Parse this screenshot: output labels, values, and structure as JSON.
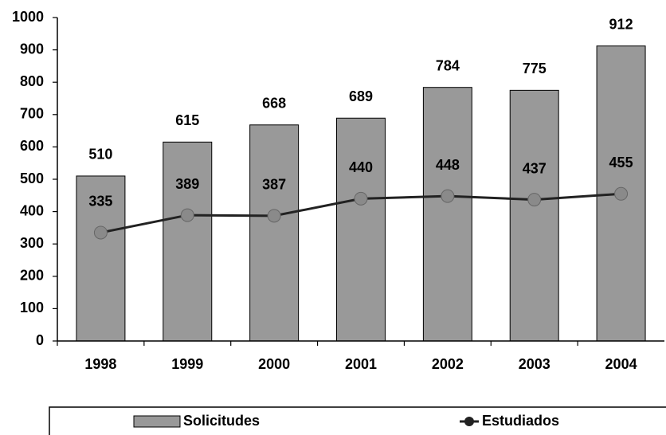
{
  "chart_data": {
    "type": "combo",
    "categories": [
      "1998",
      "1999",
      "2000",
      "2001",
      "2002",
      "2003",
      "2004"
    ],
    "series": [
      {
        "name": "Solicitudes",
        "type": "bar",
        "color": "#999999",
        "values": [
          510,
          615,
          668,
          689,
          784,
          775,
          912
        ]
      },
      {
        "name": "Estudiados",
        "type": "line",
        "color": "#222222",
        "marker_color": "#8a8a8a",
        "values": [
          335,
          389,
          387,
          440,
          448,
          437,
          455
        ]
      }
    ],
    "ylim": [
      0,
      1000
    ],
    "yticks": [
      0,
      100,
      200,
      300,
      400,
      500,
      600,
      700,
      800,
      900,
      1000
    ],
    "legend": "bottom"
  }
}
